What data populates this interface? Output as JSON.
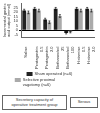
{
  "chart_data": {
    "type": "bar",
    "y_label": "Incremental gastric\nacid output (mmol)",
    "categories": [
      "Saline",
      "Pentagastrin\n0.5",
      "Pentagastrin\n2.0",
      "Bethanechol\n25",
      "Bethanechol\n100",
      "Histamine\n0.5",
      "Histamine\n2.0"
    ],
    "series": [
      {
        "name": "Sham operated (n=6)",
        "color": "#222222",
        "values": [
          22,
          24,
          12,
          24,
          -3,
          24,
          24
        ],
        "errors": [
          1.5,
          1.5,
          1.5,
          1.5,
          1.0,
          1.5,
          1.5
        ]
      },
      {
        "name": "Selective proximal\nvagotomy (n=6)",
        "color": "#aaaaaa",
        "values": [
          20,
          22,
          9,
          16,
          -2,
          22,
          22
        ],
        "errors": [
          1.5,
          1.5,
          1.5,
          1.5,
          0.8,
          1.5,
          1.5
        ]
      }
    ],
    "ylim": [
      -8,
      30
    ],
    "yticks": [
      -5,
      0,
      5,
      10,
      15,
      20,
      25
    ],
    "grid": false,
    "legend": "bottom",
    "annotations": [
      "Secretory capacity of\noperative treatment group",
      "Serous"
    ]
  }
}
